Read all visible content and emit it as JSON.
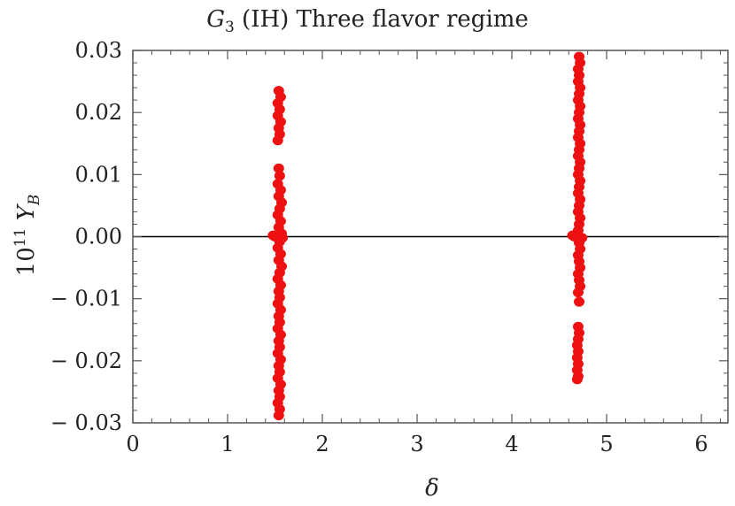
{
  "chart_data": {
    "type": "scatter",
    "title": {
      "main": "G",
      "sub": "3",
      "rest": " (IH) Three flavor regime"
    },
    "xlabel": "δ",
    "ylabel": {
      "prefix": "10",
      "sup": "11",
      "symbol": " Y",
      "sub": "B"
    },
    "xlim": [
      0,
      6.28
    ],
    "ylim": [
      -0.03,
      0.03
    ],
    "x_ticks": [
      {
        "v": 0,
        "label": "0"
      },
      {
        "v": 1,
        "label": "1"
      },
      {
        "v": 2,
        "label": "2"
      },
      {
        "v": 3,
        "label": "3"
      },
      {
        "v": 4,
        "label": "4"
      },
      {
        "v": 5,
        "label": "5"
      },
      {
        "v": 6,
        "label": "6"
      }
    ],
    "y_ticks": [
      {
        "v": 0.03,
        "label": "0.03"
      },
      {
        "v": 0.02,
        "label": "0.02"
      },
      {
        "v": 0.01,
        "label": "0.01"
      },
      {
        "v": 0.0,
        "label": "0.00"
      },
      {
        "v": -0.01,
        "label": "− 0.01"
      },
      {
        "v": -0.02,
        "label": "− 0.02"
      },
      {
        "v": -0.03,
        "label": "− 0.03"
      }
    ],
    "reference_line_y": 0,
    "marker_color": "#ee1111",
    "series": [
      {
        "points": [
          {
            "x": 1.54,
            "y": 0.0235
          },
          {
            "x": 1.56,
            "y": 0.0225
          },
          {
            "x": 1.53,
            "y": 0.0215
          },
          {
            "x": 1.55,
            "y": 0.0205
          },
          {
            "x": 1.53,
            "y": 0.0195
          },
          {
            "x": 1.56,
            "y": 0.0185
          },
          {
            "x": 1.54,
            "y": 0.0175
          },
          {
            "x": 1.55,
            "y": 0.0165
          },
          {
            "x": 1.53,
            "y": 0.0155
          },
          {
            "x": 1.54,
            "y": 0.011
          },
          {
            "x": 1.55,
            "y": 0.0098
          },
          {
            "x": 1.53,
            "y": 0.0085
          },
          {
            "x": 1.56,
            "y": 0.0075
          },
          {
            "x": 1.54,
            "y": 0.0065
          },
          {
            "x": 1.57,
            "y": 0.0055
          },
          {
            "x": 1.55,
            "y": 0.0045
          },
          {
            "x": 1.53,
            "y": 0.0035
          },
          {
            "x": 1.56,
            "y": 0.0025
          },
          {
            "x": 1.54,
            "y": 0.0015
          },
          {
            "x": 1.57,
            "y": 0.0005
          },
          {
            "x": 1.48,
            "y": 0.0002
          },
          {
            "x": 1.5,
            "y": 0.0
          },
          {
            "x": 1.58,
            "y": -0.0002
          },
          {
            "x": 1.55,
            "y": -0.0008
          },
          {
            "x": 1.53,
            "y": -0.0018
          },
          {
            "x": 1.56,
            "y": -0.0028
          },
          {
            "x": 1.54,
            "y": -0.0038
          },
          {
            "x": 1.57,
            "y": -0.0048
          },
          {
            "x": 1.55,
            "y": -0.0058
          },
          {
            "x": 1.53,
            "y": -0.0068
          },
          {
            "x": 1.56,
            "y": -0.0078
          },
          {
            "x": 1.54,
            "y": -0.0088
          },
          {
            "x": 1.55,
            "y": -0.0098
          },
          {
            "x": 1.53,
            "y": -0.0108
          },
          {
            "x": 1.56,
            "y": -0.0118
          },
          {
            "x": 1.54,
            "y": -0.0128
          },
          {
            "x": 1.55,
            "y": -0.0138
          },
          {
            "x": 1.53,
            "y": -0.0148
          },
          {
            "x": 1.56,
            "y": -0.0158
          },
          {
            "x": 1.54,
            "y": -0.0168
          },
          {
            "x": 1.55,
            "y": -0.0178
          },
          {
            "x": 1.53,
            "y": -0.0188
          },
          {
            "x": 1.56,
            "y": -0.0198
          },
          {
            "x": 1.54,
            "y": -0.0208
          },
          {
            "x": 1.55,
            "y": -0.0218
          },
          {
            "x": 1.53,
            "y": -0.0228
          },
          {
            "x": 1.56,
            "y": -0.0238
          },
          {
            "x": 1.54,
            "y": -0.0248
          },
          {
            "x": 1.55,
            "y": -0.0258
          },
          {
            "x": 1.53,
            "y": -0.0268
          },
          {
            "x": 1.55,
            "y": -0.0278
          },
          {
            "x": 1.54,
            "y": -0.0288
          }
        ]
      },
      {
        "points": [
          {
            "x": 4.71,
            "y": 0.029
          },
          {
            "x": 4.72,
            "y": 0.028
          },
          {
            "x": 4.7,
            "y": 0.027
          },
          {
            "x": 4.71,
            "y": 0.026
          },
          {
            "x": 4.7,
            "y": 0.025
          },
          {
            "x": 4.72,
            "y": 0.024
          },
          {
            "x": 4.71,
            "y": 0.023
          },
          {
            "x": 4.7,
            "y": 0.022
          },
          {
            "x": 4.72,
            "y": 0.021
          },
          {
            "x": 4.71,
            "y": 0.02
          },
          {
            "x": 4.7,
            "y": 0.019
          },
          {
            "x": 4.72,
            "y": 0.018
          },
          {
            "x": 4.71,
            "y": 0.017
          },
          {
            "x": 4.7,
            "y": 0.016
          },
          {
            "x": 4.72,
            "y": 0.015
          },
          {
            "x": 4.71,
            "y": 0.014
          },
          {
            "x": 4.7,
            "y": 0.013
          },
          {
            "x": 4.72,
            "y": 0.012
          },
          {
            "x": 4.71,
            "y": 0.011
          },
          {
            "x": 4.7,
            "y": 0.01
          },
          {
            "x": 4.72,
            "y": 0.009
          },
          {
            "x": 4.71,
            "y": 0.008
          },
          {
            "x": 4.7,
            "y": 0.007
          },
          {
            "x": 4.72,
            "y": 0.006
          },
          {
            "x": 4.71,
            "y": 0.005
          },
          {
            "x": 4.7,
            "y": 0.004
          },
          {
            "x": 4.72,
            "y": 0.003
          },
          {
            "x": 4.71,
            "y": 0.002
          },
          {
            "x": 4.7,
            "y": 0.001
          },
          {
            "x": 4.64,
            "y": 0.0002
          },
          {
            "x": 4.66,
            "y": 0.0
          },
          {
            "x": 4.74,
            "y": -0.0002
          },
          {
            "x": 4.71,
            "y": -0.001
          },
          {
            "x": 4.72,
            "y": -0.002
          },
          {
            "x": 4.7,
            "y": -0.003
          },
          {
            "x": 4.71,
            "y": -0.004
          },
          {
            "x": 4.72,
            "y": -0.005
          },
          {
            "x": 4.7,
            "y": -0.006
          },
          {
            "x": 4.71,
            "y": -0.007
          },
          {
            "x": 4.72,
            "y": -0.008
          },
          {
            "x": 4.7,
            "y": -0.009
          },
          {
            "x": 4.71,
            "y": -0.0105
          },
          {
            "x": 4.7,
            "y": -0.0145
          },
          {
            "x": 4.71,
            "y": -0.0155
          },
          {
            "x": 4.7,
            "y": -0.0165
          },
          {
            "x": 4.69,
            "y": -0.0175
          },
          {
            "x": 4.7,
            "y": -0.0185
          },
          {
            "x": 4.69,
            "y": -0.0195
          },
          {
            "x": 4.7,
            "y": -0.0205
          },
          {
            "x": 4.69,
            "y": -0.0215
          },
          {
            "x": 4.7,
            "y": -0.0225
          },
          {
            "x": 4.69,
            "y": -0.023
          }
        ]
      }
    ]
  }
}
